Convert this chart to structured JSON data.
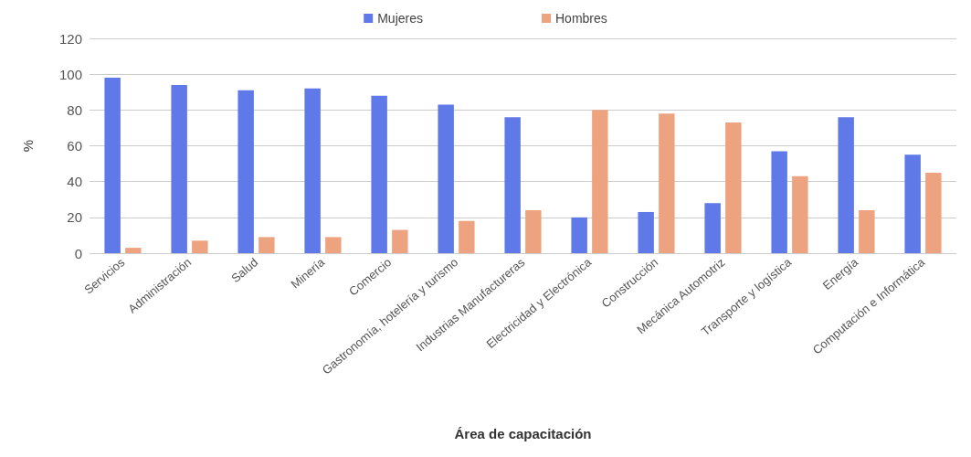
{
  "chart_data": {
    "type": "bar",
    "xlabel": "Área de capacitación",
    "ylabel": "%",
    "categories": [
      "Servicios",
      "Administración",
      "Salud",
      "Minería",
      "Comercio",
      "Gastronomía, hotelería y turismo",
      "Industrias Manufactureras",
      "Electricidad y Electrónica",
      "Construcción",
      "Mecánica Automotriz",
      "Transporte y logística",
      "Energía",
      "Computación e Informática"
    ],
    "series": [
      {
        "name": "Mujeres",
        "color": "#5f79e8",
        "values": [
          98,
          94,
          91,
          92,
          88,
          83,
          76,
          20,
          23,
          28,
          57,
          76,
          55
        ]
      },
      {
        "name": "Hombres",
        "color": "#eea380",
        "values": [
          3,
          7,
          9,
          9,
          13,
          18,
          24,
          80,
          78,
          73,
          43,
          24,
          45
        ]
      }
    ],
    "ylim": [
      0,
      120
    ],
    "yticks": [
      0,
      20,
      40,
      60,
      80,
      100,
      120
    ],
    "grid": "y",
    "legend": "top"
  }
}
